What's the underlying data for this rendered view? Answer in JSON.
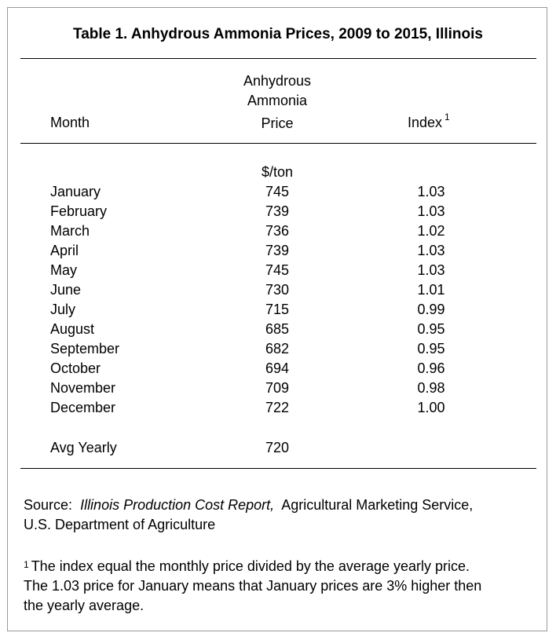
{
  "title": "Table 1. Anhydrous Ammonia Prices, 2009 to 2015, Illinois",
  "header": {
    "price_line1": "Anhydrous",
    "price_line2": "Ammonia",
    "price_line3": "Price",
    "month": "Month",
    "index": "Index",
    "index_note_mark": "1"
  },
  "unit": "$/ton",
  "rows": [
    {
      "month": "January",
      "price": "745",
      "index": "1.03"
    },
    {
      "month": "February",
      "price": "739",
      "index": "1.03"
    },
    {
      "month": "March",
      "price": "736",
      "index": "1.02"
    },
    {
      "month": "April",
      "price": "739",
      "index": "1.03"
    },
    {
      "month": "May",
      "price": "745",
      "index": "1.03"
    },
    {
      "month": "June",
      "price": "730",
      "index": "1.01"
    },
    {
      "month": "July",
      "price": "715",
      "index": "0.99"
    },
    {
      "month": "August",
      "price": "685",
      "index": "0.95"
    },
    {
      "month": "September",
      "price": "682",
      "index": "0.95"
    },
    {
      "month": "October",
      "price": "694",
      "index": "0.96"
    },
    {
      "month": "November",
      "price": "709",
      "index": "0.98"
    },
    {
      "month": "December",
      "price": "722",
      "index": "1.00"
    }
  ],
  "avg": {
    "label": "Avg Yearly",
    "price": "720"
  },
  "source": {
    "label": "Source:",
    "publication": "Illinois Production Cost Report,",
    "publisher": "Agricultural Marketing Service,",
    "line2": "U.S. Department of Agriculture"
  },
  "footnote": {
    "mark": "1",
    "line1": "The index equal the monthly price divided by the average yearly price.",
    "line2": "The 1.03 price for January means that January prices are 3% higher then",
    "line3": "the yearly average."
  }
}
